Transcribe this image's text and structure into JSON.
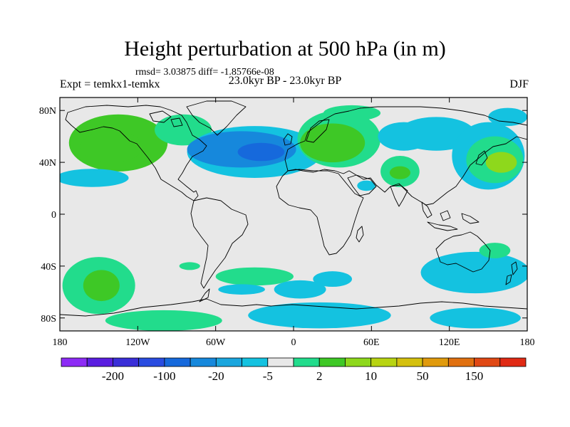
{
  "title": "Height perturbation at 500 hPa (in m)",
  "stats": "rmsd= 3.03875 diff= -1.85766e-08",
  "experiment": "Expt = temkx1-temkx",
  "period": "23.0kyr BP - 23.0kyr BP",
  "season": "DJF",
  "map": {
    "projection": "cylindrical-equidistant",
    "lon_range": [
      -180,
      180
    ],
    "lat_range": [
      -90,
      90
    ],
    "lat_ticks": [
      {
        "lat": 80,
        "label": "80N"
      },
      {
        "lat": 40,
        "label": "40N"
      },
      {
        "lat": 0,
        "label": "0"
      },
      {
        "lat": -40,
        "label": "40S"
      },
      {
        "lat": -80,
        "label": "80S"
      }
    ],
    "lon_ticks": [
      {
        "lon": -180,
        "label": "180"
      },
      {
        "lon": -120,
        "label": "120W"
      },
      {
        "lon": -60,
        "label": "60W"
      },
      {
        "lon": 0,
        "label": "0"
      },
      {
        "lon": 60,
        "label": "60E"
      },
      {
        "lon": 120,
        "label": "120E"
      },
      {
        "lon": 180,
        "label": "180"
      }
    ],
    "background_color": "#e8e8e8",
    "anomalies": [
      {
        "lon": -135,
        "lat": 55,
        "rx": 38,
        "ry": 22,
        "level": 10
      },
      {
        "lon": -140,
        "lat": 52,
        "rx": 24,
        "ry": 12,
        "level": 12
      },
      {
        "lon": -85,
        "lat": 65,
        "rx": 22,
        "ry": 12,
        "level": 5
      },
      {
        "lon": -155,
        "lat": 28,
        "rx": 28,
        "ry": 7,
        "level": -5
      },
      {
        "lon": -30,
        "lat": 48,
        "rx": 52,
        "ry": 20,
        "level": -5
      },
      {
        "lon": -40,
        "lat": 50,
        "rx": 42,
        "ry": 14,
        "level": -10
      },
      {
        "lon": -25,
        "lat": 48,
        "rx": 18,
        "ry": 7,
        "level": -20
      },
      {
        "lon": 35,
        "lat": 58,
        "rx": 32,
        "ry": 22,
        "level": 5
      },
      {
        "lon": 30,
        "lat": 55,
        "rx": 25,
        "ry": 15,
        "level": 10
      },
      {
        "lon": 45,
        "lat": 78,
        "rx": 22,
        "ry": 6,
        "level": 5
      },
      {
        "lon": 85,
        "lat": 60,
        "rx": 20,
        "ry": 11,
        "level": -5
      },
      {
        "lon": 110,
        "lat": 62,
        "rx": 30,
        "ry": 13,
        "level": -5
      },
      {
        "lon": 165,
        "lat": 75,
        "rx": 15,
        "ry": 7,
        "level": -5
      },
      {
        "lon": 82,
        "lat": 33,
        "rx": 15,
        "ry": 12,
        "level": 5
      },
      {
        "lon": 82,
        "lat": 32,
        "rx": 8,
        "ry": 5,
        "level": 10
      },
      {
        "lon": 56,
        "lat": 22,
        "rx": 7,
        "ry": 4,
        "level": -5
      },
      {
        "lon": 150,
        "lat": 45,
        "rx": 28,
        "ry": 26,
        "level": -5
      },
      {
        "lon": 155,
        "lat": 42,
        "rx": 22,
        "ry": 18,
        "level": 5
      },
      {
        "lon": 160,
        "lat": 40,
        "rx": 12,
        "ry": 8,
        "level": 15
      },
      {
        "lon": -150,
        "lat": -55,
        "rx": 28,
        "ry": 22,
        "level": 5
      },
      {
        "lon": -148,
        "lat": -55,
        "rx": 14,
        "ry": 12,
        "level": 10
      },
      {
        "lon": -80,
        "lat": -40,
        "rx": 8,
        "ry": 3,
        "level": 5
      },
      {
        "lon": -30,
        "lat": -48,
        "rx": 30,
        "ry": 7,
        "level": 5
      },
      {
        "lon": -40,
        "lat": -58,
        "rx": 18,
        "ry": 4,
        "level": -5
      },
      {
        "lon": 5,
        "lat": -58,
        "rx": 20,
        "ry": 7,
        "level": -5
      },
      {
        "lon": 30,
        "lat": -50,
        "rx": 15,
        "ry": 6,
        "level": -5
      },
      {
        "lon": 20,
        "lat": -78,
        "rx": 55,
        "ry": 10,
        "level": -5
      },
      {
        "lon": -100,
        "lat": -82,
        "rx": 45,
        "ry": 8,
        "level": 5
      },
      {
        "lon": 140,
        "lat": -45,
        "rx": 42,
        "ry": 16,
        "level": -5
      },
      {
        "lon": 155,
        "lat": -28,
        "rx": 12,
        "ry": 6,
        "level": 5
      },
      {
        "lon": 140,
        "lat": -80,
        "rx": 35,
        "ry": 8,
        "level": -5
      }
    ]
  },
  "colorbar": {
    "colors": [
      "#8d2bf5",
      "#5a1ee0",
      "#3a2ed8",
      "#2a4ce0",
      "#1669dc",
      "#1688dc",
      "#1aa6de",
      "#14c2e0",
      "#e8e8e8",
      "#22dc8c",
      "#3ec826",
      "#8ed81c",
      "#b8d412",
      "#d4c00e",
      "#e09a0c",
      "#e07010",
      "#e04814",
      "#e02a14"
    ],
    "tick_labels": [
      {
        "after_box": 2,
        "label": "-200"
      },
      {
        "after_box": 4,
        "label": "-100"
      },
      {
        "after_box": 6,
        "label": "-20"
      },
      {
        "after_box": 8,
        "label": "-5"
      },
      {
        "after_box": 10,
        "label": "2"
      },
      {
        "after_box": 12,
        "label": "10"
      },
      {
        "after_box": 14,
        "label": "50"
      },
      {
        "after_box": 16,
        "label": "150"
      }
    ]
  }
}
